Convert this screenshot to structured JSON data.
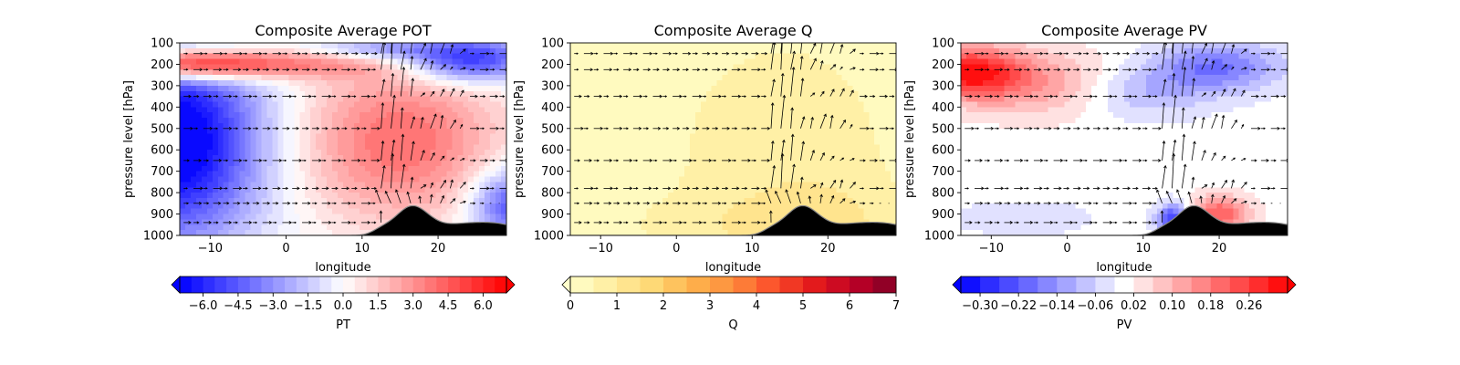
{
  "figure": {
    "background": "#ffffff",
    "colors": {
      "negative": "#0000ff",
      "positive": "#ff0000",
      "neutral": "#ffffff",
      "q_low": "#ffffcc",
      "q_high": "#800026",
      "terrain": "#000000",
      "vector": "#000000"
    }
  },
  "chart_data": [
    {
      "type": "heatmap",
      "title": "Composite Average POT",
      "xlabel": "longitude",
      "ylabel": "pressure level [hPa]",
      "x_ticks": [
        -10,
        0,
        10,
        20
      ],
      "x_tick_labels": [
        "−10",
        "0",
        "10",
        "20"
      ],
      "xlim": [
        -14,
        29
      ],
      "y_ticks": [
        100,
        200,
        300,
        400,
        500,
        600,
        700,
        800,
        900,
        1000
      ],
      "y_tick_labels": [
        "100",
        "200",
        "300",
        "400",
        "500",
        "600",
        "700",
        "800",
        "900",
        "1000"
      ],
      "ylim": [
        1000,
        100
      ],
      "y_inverted": true,
      "overlay": "wind vectors (quiver) and terrain profile",
      "colormap": "bwr",
      "colorbar": {
        "label": "PT",
        "range": [
          -7.0,
          7.0
        ],
        "levels": 28,
        "extend": "both",
        "ticks": [
          -6.0,
          -4.5,
          -3.0,
          -1.5,
          0.0,
          1.5,
          3.0,
          4.5,
          6.0
        ],
        "tick_labels": [
          "−6.0",
          "−4.5",
          "−3.0",
          "−1.5",
          "0.0",
          "1.5",
          "3.0",
          "4.5",
          "6.0"
        ]
      },
      "field_description": "warm anomaly near 150-250 hPa west; cold anomaly 300-900 hPa west and near 150-250 hPa east of 14; warm anomaly 300-800 hPa between 5 and 25 longitude"
    },
    {
      "type": "heatmap",
      "title": "Composite Average Q",
      "xlabel": "longitude",
      "ylabel": "pressure level [hPa]",
      "x_ticks": [
        -10,
        0,
        10,
        20
      ],
      "x_tick_labels": [
        "−10",
        "0",
        "10",
        "20"
      ],
      "xlim": [
        -14,
        29
      ],
      "y_ticks": [
        100,
        200,
        300,
        400,
        500,
        600,
        700,
        800,
        900,
        1000
      ],
      "y_tick_labels": [
        "100",
        "200",
        "300",
        "400",
        "500",
        "600",
        "700",
        "800",
        "900",
        "1000"
      ],
      "ylim": [
        1000,
        100
      ],
      "y_inverted": true,
      "overlay": "wind vectors (quiver) and terrain profile",
      "colormap": "YlOrRd",
      "colorbar": {
        "label": "Q",
        "range": [
          0,
          7
        ],
        "levels": 14,
        "extend": "min",
        "ticks": [
          0,
          1,
          2,
          3,
          4,
          5,
          6,
          7
        ],
        "tick_labels": [
          "0",
          "1",
          "2",
          "3",
          "4",
          "5",
          "6",
          "7"
        ]
      },
      "field_description": "low values everywhere, slightly higher (~0.5-1) between 5 and 25 longitude, highest near surface"
    },
    {
      "type": "heatmap",
      "title": "Composite Average PV",
      "xlabel": "longitude",
      "ylabel": "pressure level [hPa]",
      "x_ticks": [
        -10,
        0,
        10,
        20
      ],
      "x_tick_labels": [
        "−10",
        "0",
        "10",
        "20"
      ],
      "xlim": [
        -14,
        29
      ],
      "y_ticks": [
        100,
        200,
        300,
        400,
        500,
        600,
        700,
        800,
        900,
        1000
      ],
      "y_tick_labels": [
        "100",
        "200",
        "300",
        "400",
        "500",
        "600",
        "700",
        "800",
        "900",
        "1000"
      ],
      "ylim": [
        1000,
        100
      ],
      "y_inverted": true,
      "overlay": "wind vectors (quiver) and terrain profile",
      "colormap": "bwr",
      "colorbar": {
        "label": "PV",
        "range": [
          -0.34,
          0.34
        ],
        "levels": 17,
        "extend": "both",
        "ticks": [
          -0.3,
          -0.22,
          -0.14,
          -0.06,
          0.02,
          0.1,
          0.18,
          0.26
        ],
        "tick_labels": [
          "−0.30",
          "−0.22",
          "−0.14",
          "−0.06",
          "0.02",
          "0.10",
          "0.18",
          "0.26"
        ]
      },
      "field_description": "positive PV 150-450 hPa west of 5; negative PV 150-400 hPa east of 5; dipole near surface around 14-22 longitude"
    }
  ]
}
